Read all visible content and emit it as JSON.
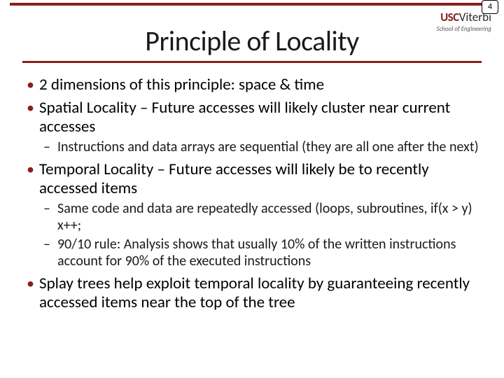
{
  "page_number": "4",
  "logo": {
    "usc": "USC",
    "viterbi": "Viterbi",
    "sub": "School of Engineering"
  },
  "title": "Principle of Locality",
  "accent_color": "#8a1e1e",
  "bullets": [
    {
      "text": "2 dimensions of this principle: space & time",
      "sub": []
    },
    {
      "text": "Spatial Locality – Future accesses will likely cluster near current accesses",
      "sub": [
        "Instructions and data arrays are sequential (they are all one after the next)"
      ]
    },
    {
      "text": "Temporal Locality – Future accesses will likely be to recently accessed items",
      "sub": [
        "Same code and data are repeatedly accessed (loops, subroutines, if(x > y) x++;",
        "90/10 rule:  Analysis shows that usually 10% of the written instructions account for 90% of the executed instructions"
      ]
    },
    {
      "text": "Splay trees help exploit temporal locality by guaranteeing recently accessed items near the top of the tree",
      "sub": []
    }
  ]
}
